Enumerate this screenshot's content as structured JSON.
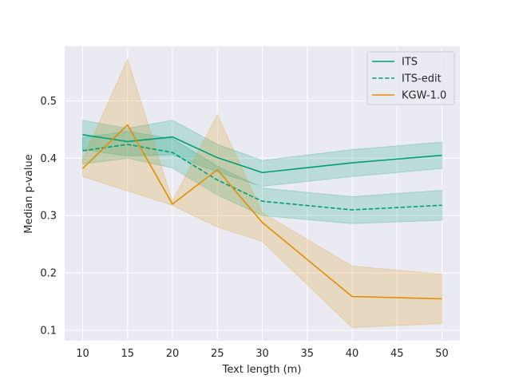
{
  "chart_data": {
    "type": "line",
    "title": "",
    "xlabel": "Text length (m)",
    "ylabel": "Median p-value",
    "xlim": [
      8.0,
      52.0
    ],
    "ylim": [
      0.082,
      0.595
    ],
    "xticks": [
      10,
      15,
      20,
      25,
      30,
      35,
      40,
      45,
      50
    ],
    "yticks": [
      0.1,
      0.2,
      0.3,
      0.4,
      0.5
    ],
    "xtick_labels": [
      "10",
      "15",
      "20",
      "25",
      "30",
      "35",
      "40",
      "45",
      "50"
    ],
    "ytick_labels": [
      "0.1",
      "0.2",
      "0.3",
      "0.4",
      "0.5"
    ],
    "grid": true,
    "legend_position": "top-right",
    "series": [
      {
        "name": "ITS",
        "color": "#029e73",
        "style": "solid",
        "x": [
          10,
          15,
          20,
          25,
          30,
          40,
          50
        ],
        "values": [
          0.441,
          0.429,
          0.437,
          0.401,
          0.375,
          0.392,
          0.405
        ],
        "lower": [
          0.415,
          0.404,
          0.406,
          0.376,
          0.351,
          0.368,
          0.382
        ],
        "upper": [
          0.466,
          0.452,
          0.466,
          0.424,
          0.396,
          0.415,
          0.428
        ]
      },
      {
        "name": "ITS-edit",
        "color": "#029e73",
        "style": "dashed",
        "x": [
          10,
          15,
          20,
          25,
          30,
          40,
          50
        ],
        "values": [
          0.413,
          0.424,
          0.41,
          0.362,
          0.325,
          0.31,
          0.318
        ],
        "lower": [
          0.39,
          0.4,
          0.383,
          0.336,
          0.3,
          0.286,
          0.292
        ],
        "upper": [
          0.436,
          0.447,
          0.434,
          0.386,
          0.348,
          0.333,
          0.344
        ]
      },
      {
        "name": "KGW-1.0",
        "color": "#de8f05",
        "style": "solid",
        "x": [
          10,
          15,
          20,
          25,
          30,
          40,
          50
        ],
        "values": [
          0.382,
          0.458,
          0.32,
          0.38,
          0.288,
          0.159,
          0.155
        ],
        "lower": [
          0.368,
          0.343,
          0.318,
          0.28,
          0.255,
          0.105,
          0.112
        ],
        "upper": [
          0.398,
          0.572,
          0.325,
          0.476,
          0.305,
          0.212,
          0.198
        ]
      }
    ]
  }
}
